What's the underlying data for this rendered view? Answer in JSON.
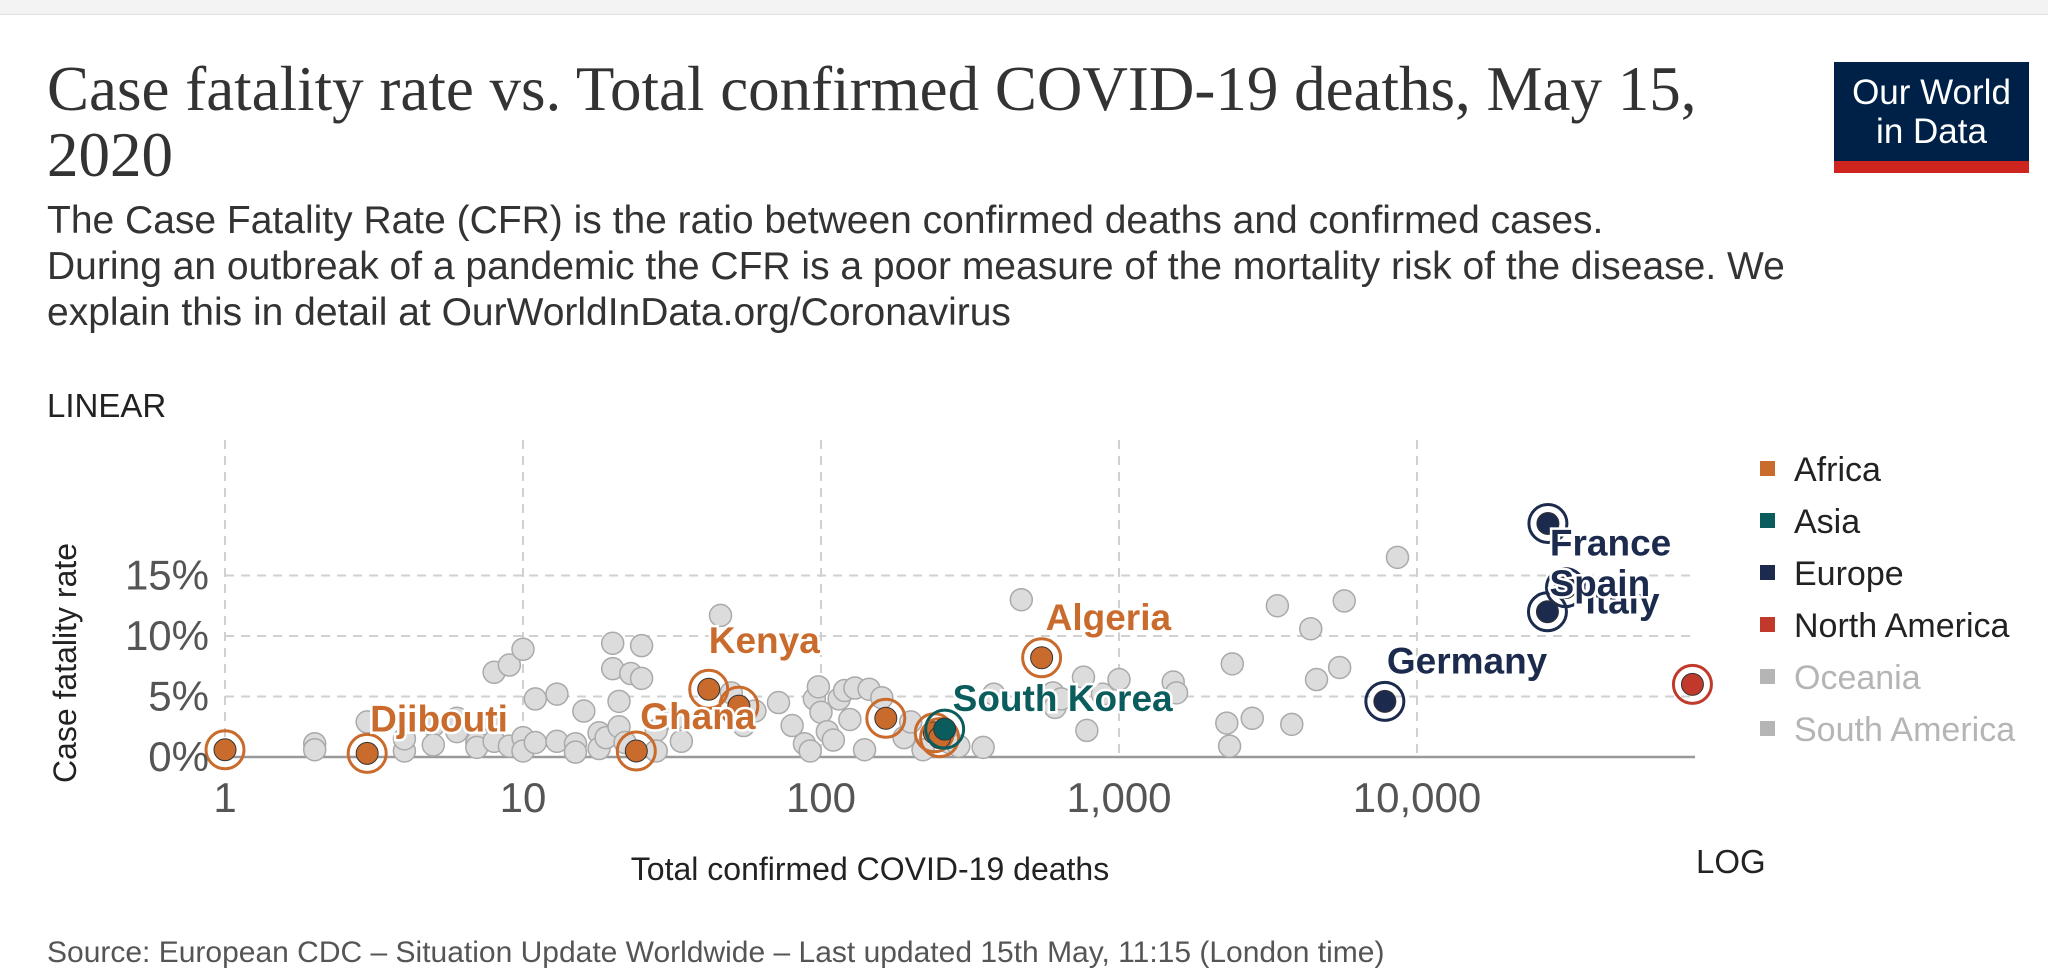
{
  "header": {
    "title": "Case fatality rate vs. Total confirmed COVID-19 deaths, May 15, 2020",
    "subtitle_line1": "The Case Fatality Rate (CFR) is the ratio between confirmed deaths and confirmed cases.",
    "subtitle_line2": "During an outbreak of a pandemic the CFR is a poor measure of the mortality risk of the disease. We explain this in detail at OurWorldInData.org/Coronavirus"
  },
  "logo": {
    "line1": "Our World",
    "line2": "in Data",
    "bg": "#002147",
    "accent": "#ce261e"
  },
  "controls": {
    "y_scale": "LINEAR",
    "x_scale": "LOG"
  },
  "source": "Source: European CDC – Situation Update Worldwide – Last updated 15th May, 11:15 (London time)",
  "chart_data": {
    "type": "scatter",
    "title": "Case fatality rate vs. Total confirmed COVID-19 deaths, May 15, 2020",
    "xlabel": "Total confirmed COVID-19 deaths",
    "ylabel": "Case fatality rate",
    "x_scale": "log",
    "xlim": [
      1,
      85000
    ],
    "ylim": [
      0,
      19
    ],
    "x_ticks": [
      {
        "value": 1,
        "label": "1"
      },
      {
        "value": 10,
        "label": "10"
      },
      {
        "value": 100,
        "label": "100"
      },
      {
        "value": 1000,
        "label": "1,000"
      },
      {
        "value": 10000,
        "label": "10,000"
      }
    ],
    "y_ticks": [
      {
        "value": 0,
        "label": "0%"
      },
      {
        "value": 5,
        "label": "5%"
      },
      {
        "value": 10,
        "label": "10%"
      },
      {
        "value": 15,
        "label": "15%"
      }
    ],
    "grid": true,
    "legend": {
      "position": "right",
      "entries": [
        {
          "name": "Africa",
          "color": "#c96b2c",
          "active": true
        },
        {
          "name": "Asia",
          "color": "#0b5c5c",
          "active": true
        },
        {
          "name": "Europe",
          "color": "#1c2b4d",
          "active": true
        },
        {
          "name": "North America",
          "color": "#c0392b",
          "active": true
        },
        {
          "name": "Oceania",
          "color": "#b5b5b5",
          "active": false
        },
        {
          "name": "South America",
          "color": "#b5b5b5",
          "active": false
        }
      ]
    },
    "highlighted": [
      {
        "label": "Djibouti",
        "region": "Africa",
        "x": 3,
        "y": 0.3
      },
      {
        "label": "Ghana",
        "region": "Africa",
        "x": 24,
        "y": 0.5
      },
      {
        "label": "Kenya",
        "region": "Africa",
        "x": 42,
        "y": 5.6
      },
      {
        "label": "Algeria",
        "region": "Africa",
        "x": 550,
        "y": 8.2
      },
      {
        "label": "South Korea",
        "region": "Asia",
        "x": 260,
        "y": 2.3
      },
      {
        "label": "Germany",
        "region": "Europe",
        "x": 7800,
        "y": 4.6
      },
      {
        "label": "France",
        "region": "Europe",
        "x": 27500,
        "y": 19.3
      },
      {
        "label": "Italy",
        "region": "Europe",
        "x": 31500,
        "y": 14.0
      },
      {
        "label": "Spain",
        "region": "Europe",
        "x": 27400,
        "y": 12.0
      }
    ],
    "highlighted_unlabeled": [
      {
        "region": "Africa",
        "x": 1,
        "y": 0.6
      },
      {
        "region": "Africa",
        "x": 53,
        "y": 4.2
      },
      {
        "region": "Africa",
        "x": 165,
        "y": 3.2
      },
      {
        "region": "Africa",
        "x": 240,
        "y": 2.0
      },
      {
        "region": "Africa",
        "x": 250,
        "y": 1.6
      },
      {
        "region": "North America",
        "x": 84000,
        "y": 6.0
      }
    ],
    "other_countries": [
      [
        2,
        1.1
      ],
      [
        2,
        0.6
      ],
      [
        3,
        2.9
      ],
      [
        4,
        0.5
      ],
      [
        4,
        1.5
      ],
      [
        5,
        2.6
      ],
      [
        5,
        1.0
      ],
      [
        6,
        2.1
      ],
      [
        6,
        3.2
      ],
      [
        7,
        1.2
      ],
      [
        7,
        0.8
      ],
      [
        8,
        7.0
      ],
      [
        8,
        2.8
      ],
      [
        8,
        1.3
      ],
      [
        9,
        7.6
      ],
      [
        9,
        0.9
      ],
      [
        10,
        8.9
      ],
      [
        10,
        1.6
      ],
      [
        10,
        0.5
      ],
      [
        11,
        4.8
      ],
      [
        11,
        1.2
      ],
      [
        13,
        5.2
      ],
      [
        13,
        1.3
      ],
      [
        15,
        1.1
      ],
      [
        15,
        0.4
      ],
      [
        16,
        3.8
      ],
      [
        18,
        2.0
      ],
      [
        18,
        0.7
      ],
      [
        19,
        1.6
      ],
      [
        20,
        9.4
      ],
      [
        20,
        7.3
      ],
      [
        21,
        2.5
      ],
      [
        21,
        4.6
      ],
      [
        22,
        1.2
      ],
      [
        23,
        6.9
      ],
      [
        25,
        9.2
      ],
      [
        25,
        6.5
      ],
      [
        28,
        2.2
      ],
      [
        28,
        0.5
      ],
      [
        32,
        3.1
      ],
      [
        34,
        1.3
      ],
      [
        46,
        11.7
      ],
      [
        50,
        5.3
      ],
      [
        55,
        2.6
      ],
      [
        60,
        3.8
      ],
      [
        72,
        4.5
      ],
      [
        80,
        2.6
      ],
      [
        88,
        1.1
      ],
      [
        92,
        0.5
      ],
      [
        95,
        4.8
      ],
      [
        98,
        5.8
      ],
      [
        100,
        3.7
      ],
      [
        105,
        2.1
      ],
      [
        110,
        1.4
      ],
      [
        115,
        4.8
      ],
      [
        120,
        5.5
      ],
      [
        125,
        3.1
      ],
      [
        130,
        5.7
      ],
      [
        140,
        0.6
      ],
      [
        145,
        5.6
      ],
      [
        160,
        4.9
      ],
      [
        190,
        1.6
      ],
      [
        200,
        2.9
      ],
      [
        220,
        0.6
      ],
      [
        270,
        1.2
      ],
      [
        290,
        0.9
      ],
      [
        350,
        0.8
      ],
      [
        380,
        5.2
      ],
      [
        470,
        13.0
      ],
      [
        600,
        5.3
      ],
      [
        610,
        4.1
      ],
      [
        640,
        4.8
      ],
      [
        760,
        6.6
      ],
      [
        780,
        2.2
      ],
      [
        880,
        5.2
      ],
      [
        1000,
        6.4
      ],
      [
        1520,
        6.2
      ],
      [
        1560,
        5.3
      ],
      [
        2300,
        2.8
      ],
      [
        2350,
        0.9
      ],
      [
        2400,
        7.7
      ],
      [
        2800,
        3.2
      ],
      [
        3400,
        12.5
      ],
      [
        3800,
        2.7
      ],
      [
        4400,
        10.6
      ],
      [
        4600,
        6.4
      ],
      [
        5500,
        7.4
      ],
      [
        5700,
        12.9
      ],
      [
        8600,
        16.5
      ]
    ]
  }
}
